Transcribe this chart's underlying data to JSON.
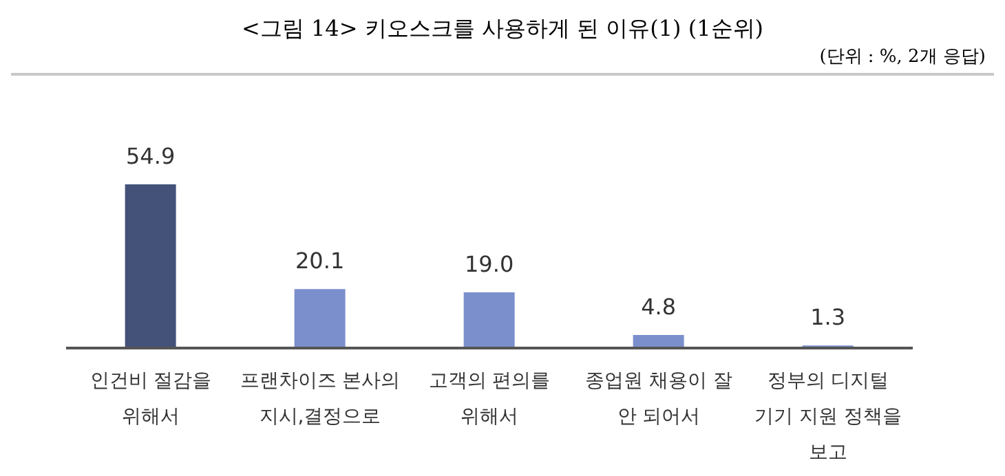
{
  "chart_data": {
    "type": "bar",
    "title": "<그림 14> 키오스크를 사용하게 된 이유(1) (1순위)",
    "subtitle": "(단위 : %, 2개 응답)",
    "categories": [
      "인건비 절감을 위해서",
      "프랜차이즈 본사의 지시,결정으로",
      "고객의 편의를 위해서",
      "종업원 채용이 잘 안 되어서",
      "정부의 디지털 기기 지원 정책을 보고"
    ],
    "values": [
      54.9,
      20.1,
      19.0,
      4.8,
      1.3
    ],
    "colors": [
      "#44527a",
      "#7b8fcc",
      "#7b8fcc",
      "#7b8fcc",
      "#7b8fcc"
    ],
    "value_labels": [
      "54.9",
      "20.1",
      "19.0",
      "4.8",
      "1.3"
    ],
    "tick_labels": "x"
  }
}
